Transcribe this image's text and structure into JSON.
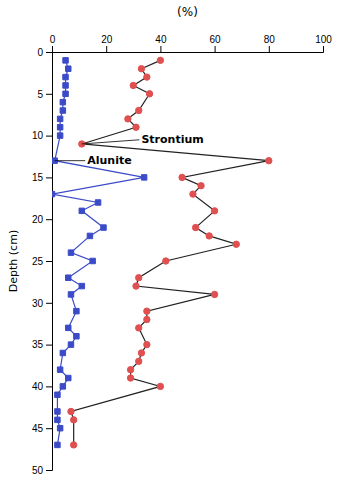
{
  "chart_data": {
    "type": "line",
    "xlabel": "(%)",
    "ylabel": "Depth (cm)",
    "xlim": [
      0,
      100
    ],
    "ylim": [
      50,
      0
    ],
    "xticks": [
      0,
      20,
      40,
      60,
      80,
      100
    ],
    "yticks": [
      0,
      5,
      10,
      15,
      20,
      25,
      30,
      35,
      40,
      45,
      50
    ],
    "grid": false,
    "series": [
      {
        "color": "#3B4BC8",
        "line_color": "#3B4BC8",
        "marker": "square",
        "x": [
          5,
          6,
          5,
          5,
          5,
          4,
          4,
          3,
          3,
          3,
          1,
          34,
          0,
          17,
          11,
          19,
          14,
          7,
          15,
          6,
          11,
          7,
          9,
          6,
          9,
          7,
          4,
          3,
          6,
          4,
          2,
          2,
          2,
          3,
          2
        ],
        "values": [
          1,
          2,
          3,
          4,
          5,
          6,
          7,
          8,
          9,
          10,
          13,
          15,
          17,
          18,
          19,
          21,
          22,
          24,
          25,
          27,
          28,
          29,
          31,
          33,
          34,
          35,
          36,
          38,
          39,
          40,
          41,
          43,
          44,
          45,
          47
        ]
      },
      {
        "color": "#E05050",
        "line_color": "#222222",
        "marker": "circle",
        "x": [
          40,
          33,
          35,
          30,
          36,
          32,
          28,
          31,
          11,
          80,
          48,
          55,
          52,
          60,
          53,
          58,
          68,
          42,
          32,
          31,
          60,
          35,
          35,
          32,
          35,
          33,
          32,
          29,
          29,
          40,
          7,
          8,
          8
        ],
        "values": [
          1,
          2,
          3,
          4,
          5,
          7,
          8,
          9,
          11,
          13,
          15,
          16,
          17,
          19,
          21,
          22,
          23,
          25,
          27,
          28,
          29,
          31,
          32,
          33,
          35,
          36,
          37,
          38,
          39,
          40,
          43,
          44,
          47
        ]
      }
    ],
    "annotations": [
      {
        "text": "Alunite",
        "x": 1,
        "y": 13,
        "text_x": 13,
        "text_y": 13
      },
      {
        "text": "Strontium",
        "x": 11,
        "y": 11,
        "text_x": 33,
        "text_y": 10.5
      }
    ]
  }
}
